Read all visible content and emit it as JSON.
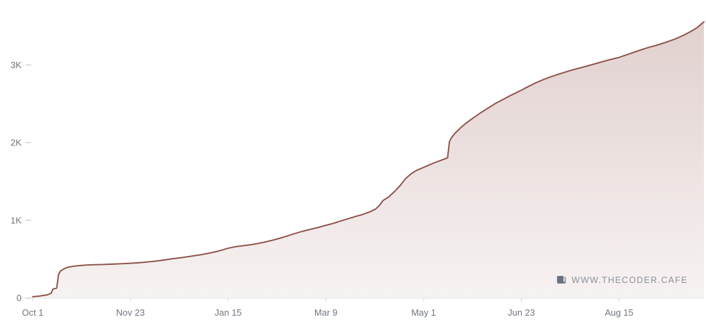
{
  "watermark": {
    "text": "WWW.THECODER.CAFE",
    "icon": "newspaper-icon"
  },
  "colors": {
    "line": "#8d4f47",
    "fill_top": "rgba(141,79,71,0.27)",
    "fill_bottom": "rgba(141,79,71,0.07)",
    "axis_text": "#6e7680",
    "y_tick_dash": "#c9ccd1",
    "x_tick_dash": "#d5d8dc",
    "baseline": "#e4e6e9",
    "watermark_text": "#8b919a",
    "watermark_icon": "#6b7280",
    "background": "#ffffff"
  },
  "chart_data": {
    "type": "area",
    "title": "",
    "xlabel": "",
    "ylabel": "",
    "legend": false,
    "grid": false,
    "x_unit": "date (days since Oct 1)",
    "y_unit": "cumulative count",
    "x_range_days": [
      0,
      364
    ],
    "ylim": [
      0,
      3750
    ],
    "x_ticks": [
      {
        "day": 0,
        "label": "Oct 1"
      },
      {
        "day": 53,
        "label": "Nov 23"
      },
      {
        "day": 106,
        "label": "Jan 15"
      },
      {
        "day": 159,
        "label": "Mar 9"
      },
      {
        "day": 212,
        "label": "May 1"
      },
      {
        "day": 265,
        "label": "Jun 23"
      },
      {
        "day": 318,
        "label": "Aug 15"
      }
    ],
    "y_ticks": [
      {
        "value": 0,
        "label": "0"
      },
      {
        "value": 1000,
        "label": "1K"
      },
      {
        "value": 2000,
        "label": "2K"
      },
      {
        "value": 3000,
        "label": "3K"
      }
    ],
    "points": [
      [
        0,
        15
      ],
      [
        4,
        25
      ],
      [
        8,
        40
      ],
      [
        10,
        60
      ],
      [
        11,
        115
      ],
      [
        13,
        125
      ],
      [
        14,
        300
      ],
      [
        15,
        345
      ],
      [
        17,
        375
      ],
      [
        19,
        395
      ],
      [
        22,
        408
      ],
      [
        26,
        418
      ],
      [
        30,
        424
      ],
      [
        34,
        428
      ],
      [
        38,
        431
      ],
      [
        42,
        434
      ],
      [
        46,
        438
      ],
      [
        50,
        442
      ],
      [
        53,
        446
      ],
      [
        57,
        452
      ],
      [
        61,
        460
      ],
      [
        66,
        472
      ],
      [
        71,
        488
      ],
      [
        76,
        505
      ],
      [
        81,
        520
      ],
      [
        86,
        538
      ],
      [
        91,
        556
      ],
      [
        96,
        578
      ],
      [
        101,
        605
      ],
      [
        106,
        640
      ],
      [
        110,
        660
      ],
      [
        114,
        672
      ],
      [
        118,
        684
      ],
      [
        122,
        700
      ],
      [
        126,
        720
      ],
      [
        130,
        742
      ],
      [
        134,
        768
      ],
      [
        138,
        798
      ],
      [
        142,
        828
      ],
      [
        146,
        856
      ],
      [
        150,
        880
      ],
      [
        154,
        902
      ],
      [
        159,
        935
      ],
      [
        163,
        960
      ],
      [
        167,
        990
      ],
      [
        171,
        1020
      ],
      [
        175,
        1048
      ],
      [
        179,
        1075
      ],
      [
        183,
        1110
      ],
      [
        186,
        1145
      ],
      [
        188,
        1190
      ],
      [
        190,
        1255
      ],
      [
        193,
        1300
      ],
      [
        196,
        1365
      ],
      [
        199,
        1440
      ],
      [
        202,
        1530
      ],
      [
        205,
        1595
      ],
      [
        208,
        1640
      ],
      [
        212,
        1680
      ],
      [
        215,
        1712
      ],
      [
        218,
        1742
      ],
      [
        221,
        1768
      ],
      [
        224,
        1795
      ],
      [
        225,
        1805
      ],
      [
        226,
        2010
      ],
      [
        227,
        2060
      ],
      [
        229,
        2120
      ],
      [
        232,
        2190
      ],
      [
        235,
        2250
      ],
      [
        239,
        2320
      ],
      [
        243,
        2385
      ],
      [
        247,
        2445
      ],
      [
        251,
        2505
      ],
      [
        255,
        2555
      ],
      [
        259,
        2605
      ],
      [
        262,
        2640
      ],
      [
        265,
        2675
      ],
      [
        269,
        2725
      ],
      [
        273,
        2772
      ],
      [
        277,
        2812
      ],
      [
        281,
        2848
      ],
      [
        285,
        2880
      ],
      [
        289,
        2910
      ],
      [
        293,
        2938
      ],
      [
        297,
        2962
      ],
      [
        301,
        2988
      ],
      [
        305,
        3015
      ],
      [
        309,
        3042
      ],
      [
        313,
        3068
      ],
      [
        318,
        3098
      ],
      [
        323,
        3138
      ],
      [
        328,
        3180
      ],
      [
        333,
        3218
      ],
      [
        338,
        3252
      ],
      [
        343,
        3288
      ],
      [
        348,
        3330
      ],
      [
        353,
        3382
      ],
      [
        357,
        3432
      ],
      [
        360,
        3475
      ],
      [
        362,
        3515
      ],
      [
        364,
        3555
      ]
    ]
  }
}
